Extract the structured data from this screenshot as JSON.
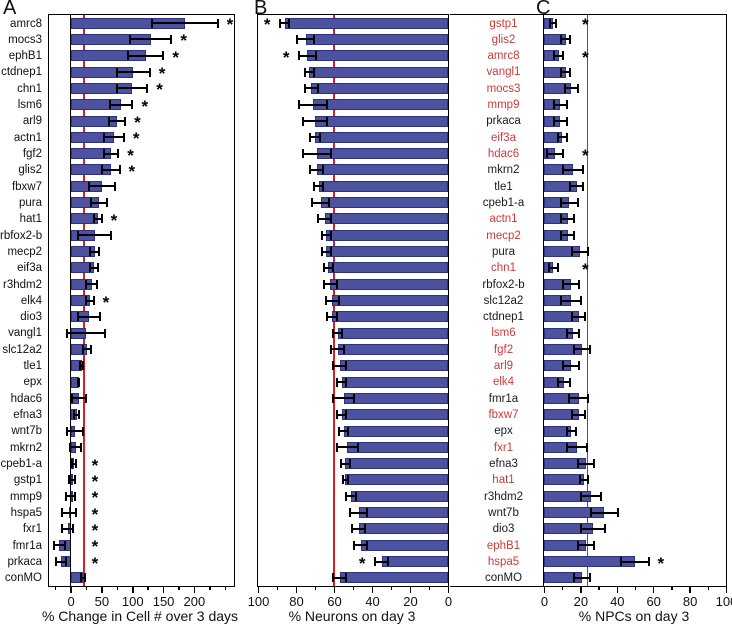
{
  "figure": {
    "panel_letters": [
      "A",
      "B",
      "C"
    ],
    "colors": {
      "bar_fill": "#4c52a0",
      "bar_edge": "#2e347c",
      "ref_line": "#d42020",
      "sig_gene_label": "#cc3a3a",
      "normal_gene_label": "#1a1a1a",
      "frame": "#000000",
      "asterisk": "#000000"
    }
  },
  "chart_data": [
    {
      "type": "bar",
      "orientation": "horizontal",
      "panel": "A",
      "xlabel": "% Change in Cell # over 3 days",
      "xlim": [
        -35,
        265
      ],
      "xticks": [
        0,
        50,
        100,
        150,
        200
      ],
      "minor_ticks": [
        -25,
        25,
        75,
        125,
        175,
        225,
        250
      ],
      "reversed": false,
      "ref_line": 22,
      "zero_axis": true,
      "grid": false,
      "categories": [
        "amrc8",
        "mocs3",
        "ephB1",
        "ctdnep1",
        "chn1",
        "lsm6",
        "arl9",
        "actn1",
        "fgf2",
        "glis2",
        "fbxw7",
        "pura",
        "hat1",
        "rbfox2-b",
        "mecp2",
        "eif3a",
        "r3hdm2",
        "elk4",
        "dio3",
        "vangl1",
        "slc12a2",
        "tle1",
        "epx",
        "hdac6",
        "efna3",
        "wnt7b",
        "mkrn2",
        "cpeb1-a",
        "gstp1",
        "mmp9",
        "hspa5",
        "fxr1",
        "fmr1a",
        "prkaca",
        "conMO"
      ],
      "values": [
        185,
        130,
        122,
        102,
        100,
        82,
        75,
        70,
        66,
        65,
        51,
        46,
        44,
        39,
        39,
        38,
        34,
        31,
        30,
        25,
        26,
        18,
        13,
        13,
        10,
        7,
        8,
        5,
        2,
        0,
        -3,
        -5,
        -18,
        -15,
        20
      ],
      "errors": [
        55,
        35,
        30,
        28,
        26,
        20,
        15,
        18,
        13,
        16,
        22,
        14,
        8,
        28,
        9,
        8,
        10,
        8,
        20,
        33,
        8,
        4,
        3,
        13,
        6,
        14,
        11,
        5,
        7,
        9,
        13,
        11,
        10,
        10,
        5
      ],
      "significant": [
        1,
        1,
        1,
        1,
        1,
        1,
        1,
        1,
        1,
        1,
        0,
        0,
        1,
        0,
        0,
        0,
        0,
        1,
        0,
        0,
        0,
        0,
        0,
        0,
        0,
        0,
        0,
        1,
        1,
        1,
        1,
        1,
        1,
        1,
        0
      ]
    },
    {
      "type": "bar",
      "orientation": "horizontal",
      "panel": "B",
      "xlabel": "% Neurons on day 3",
      "xlim": [
        0,
        100
      ],
      "xticks": [
        100,
        80,
        60,
        40,
        20,
        0
      ],
      "minor_ticks": [
        90,
        70,
        50,
        30,
        10
      ],
      "reversed": true,
      "ref_line": 60,
      "zero_axis": false,
      "grid": false,
      "categories": [
        "gstp1",
        "glis2",
        "amrc8",
        "vangl1",
        "mocs3",
        "mmp9",
        "prkaca",
        "eif3a",
        "hdac6",
        "mkrn2",
        "tle1",
        "cpeb1-a",
        "actn1",
        "mecp2",
        "pura",
        "chn1",
        "rbfox2-b",
        "slc12a2",
        "ctdnep1",
        "lsm6",
        "fgf2",
        "arl9",
        "elk4",
        "fmr1a",
        "fbxw7",
        "epx",
        "fxr1",
        "efna3",
        "hat1",
        "r3hdm2",
        "wnt7b",
        "dio3",
        "ephB1",
        "hspa5",
        "conMO"
      ],
      "values": [
        86,
        75,
        74,
        73,
        72,
        71,
        70,
        70,
        69,
        69,
        68,
        67,
        65,
        64,
        64,
        63,
        62,
        61,
        61,
        58,
        58,
        57,
        56,
        55,
        56,
        55,
        53,
        54,
        54,
        51,
        47,
        47,
        46,
        35,
        57
      ],
      "errors": [
        3,
        5,
        5,
        3,
        4,
        8,
        7,
        3,
        8,
        4,
        3,
        5,
        4,
        3,
        3,
        3,
        4,
        4,
        3,
        3,
        4,
        4,
        3,
        6,
        3,
        3,
        6,
        3,
        2,
        3,
        5,
        4,
        4,
        4,
        4
      ],
      "significant": [
        1,
        0,
        1,
        0,
        0,
        0,
        0,
        0,
        0,
        0,
        0,
        0,
        0,
        0,
        0,
        0,
        0,
        0,
        0,
        0,
        0,
        0,
        0,
        0,
        0,
        0,
        0,
        0,
        0,
        0,
        0,
        0,
        0,
        1,
        0
      ],
      "label_red": [
        1,
        1,
        1,
        1,
        1,
        1,
        0,
        1,
        1,
        0,
        0,
        0,
        1,
        1,
        0,
        1,
        0,
        0,
        0,
        1,
        1,
        1,
        1,
        0,
        1,
        0,
        1,
        0,
        1,
        0,
        0,
        0,
        1,
        1,
        0
      ]
    },
    {
      "type": "bar",
      "orientation": "horizontal",
      "panel": "C",
      "xlabel": "% NPCs on day 3",
      "xlim": [
        0,
        100
      ],
      "xticks": [
        0,
        20,
        40,
        60,
        80,
        100
      ],
      "minor_ticks": [
        10,
        30,
        50,
        70,
        90
      ],
      "reversed": false,
      "ref_line": 24,
      "zero_axis": false,
      "grid": false,
      "categories": [
        "gstp1",
        "glis2",
        "amrc8",
        "vangl1",
        "mocs3",
        "mmp9",
        "prkaca",
        "eif3a",
        "hdac6",
        "mkrn2",
        "tle1",
        "cpeb1-a",
        "actn1",
        "mecp2",
        "pura",
        "chn1",
        "rbfox2-b",
        "slc12a2",
        "ctdnep1",
        "lsm6",
        "fgf2",
        "arl9",
        "elk4",
        "fmr1a",
        "fbxw7",
        "epx",
        "fxr1",
        "efna3",
        "hat1",
        "r3hdm2",
        "wnt7b",
        "dio3",
        "ephB1",
        "hspa5",
        "conMO"
      ],
      "values": [
        5,
        12,
        8,
        12,
        15,
        9,
        9,
        10,
        6,
        16,
        18,
        14,
        13,
        13,
        20,
        5,
        15,
        15,
        19,
        16,
        21,
        15,
        11,
        19,
        19,
        15,
        18,
        23,
        22,
        26,
        33,
        27,
        23,
        50,
        21
      ],
      "errors": [
        2,
        3,
        3,
        3,
        4,
        4,
        4,
        3,
        5,
        6,
        4,
        5,
        4,
        4,
        5,
        3,
        5,
        6,
        4,
        4,
        5,
        5,
        4,
        6,
        4,
        3,
        6,
        5,
        3,
        6,
        8,
        7,
        5,
        8,
        5
      ],
      "significant": [
        1,
        0,
        1,
        0,
        0,
        0,
        0,
        0,
        1,
        0,
        0,
        0,
        0,
        0,
        0,
        1,
        0,
        0,
        0,
        0,
        0,
        0,
        0,
        0,
        0,
        0,
        0,
        0,
        0,
        0,
        0,
        0,
        0,
        1,
        0
      ]
    }
  ]
}
